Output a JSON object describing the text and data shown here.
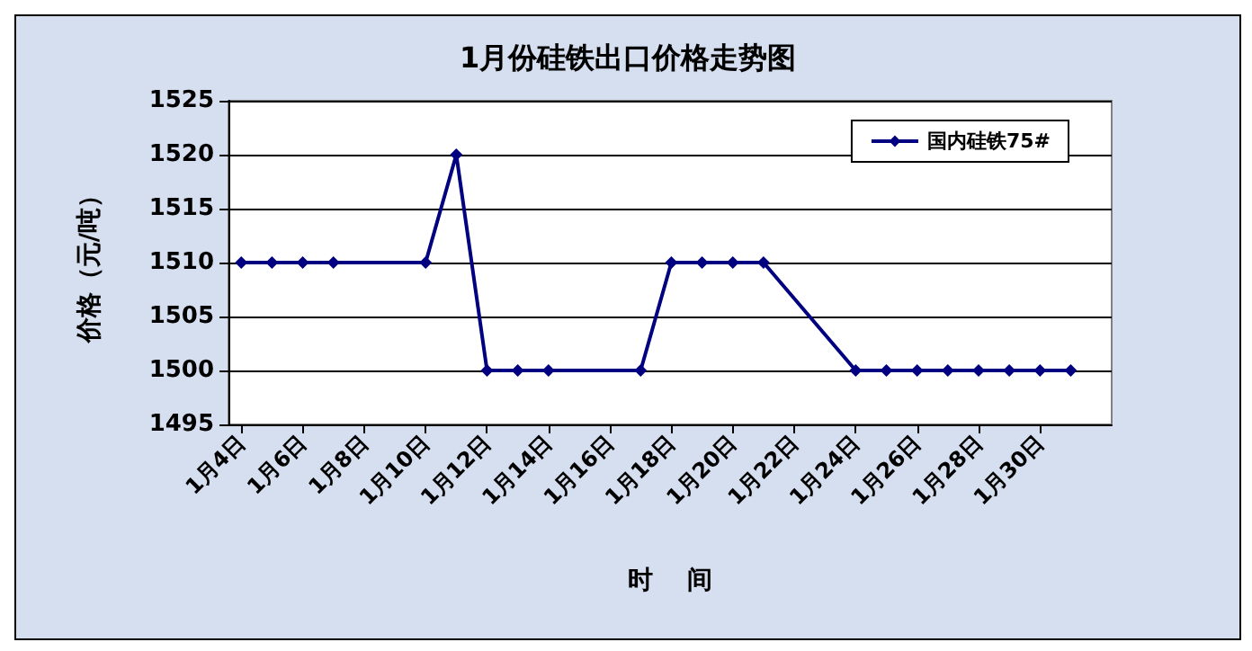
{
  "chart_data": {
    "type": "line",
    "title": "1月份硅铁出口价格走势图",
    "xlabel": "时    间",
    "ylabel": "价格（元/吨）",
    "series": [
      {
        "name": "国内硅铁75#",
        "color": "#000080",
        "x": [
          "--01-04",
          "--01-05",
          "--01-06",
          "--01-07",
          "--01-10",
          "--01-11",
          "--01-12",
          "--01-13",
          "--01-14",
          "--01-17",
          "--01-18",
          "--01-19",
          "--01-20",
          "--01-21",
          "--01-24",
          "--01-25",
          "--01-26",
          "--01-27",
          "--01-28",
          "--01-29",
          "--01-30",
          "--01-31"
        ],
        "values": [
          1510,
          1510,
          1510,
          1510,
          1510,
          1520,
          1500,
          1500,
          1500,
          1500,
          1510,
          1510,
          1510,
          1510,
          1500,
          1500,
          1500,
          1500,
          1500,
          1500,
          1500,
          1500
        ]
      }
    ],
    "xlim": [
      "--01-03T14:00",
      "--02-01T08:00"
    ],
    "xticks": [
      {
        "value": "--01-04",
        "label": "1月4日"
      },
      {
        "value": "--01-06",
        "label": "1月6日"
      },
      {
        "value": "--01-08",
        "label": "1月8日"
      },
      {
        "value": "--01-10",
        "label": "1月10日"
      },
      {
        "value": "--01-12",
        "label": "1月12日"
      },
      {
        "value": "--01-14",
        "label": "1月14日"
      },
      {
        "value": "--01-16",
        "label": "1月16日"
      },
      {
        "value": "--01-18",
        "label": "1月18日"
      },
      {
        "value": "--01-20",
        "label": "1月20日"
      },
      {
        "value": "--01-22",
        "label": "1月22日"
      },
      {
        "value": "--01-24",
        "label": "1月24日"
      },
      {
        "value": "--01-26",
        "label": "1月26日"
      },
      {
        "value": "--01-28",
        "label": "1月28日"
      },
      {
        "value": "--01-30",
        "label": "1月30日"
      }
    ],
    "ylim": [
      1495,
      1525
    ],
    "yticks": [
      1495,
      1500,
      1505,
      1510,
      1515,
      1520,
      1525
    ],
    "grid": "y",
    "legend": "top right",
    "marker": "diamond",
    "line_style": "solid"
  }
}
